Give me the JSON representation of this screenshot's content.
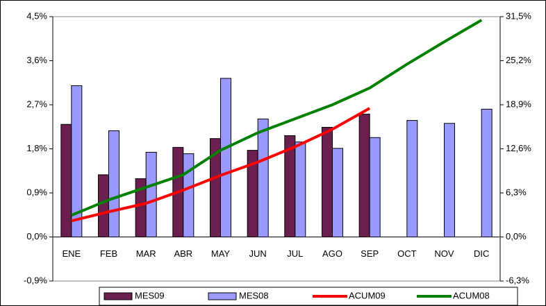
{
  "chart_data": {
    "type": "bar-line",
    "categories": [
      "ENE",
      "FEB",
      "MAR",
      "ABR",
      "MAY",
      "JUN",
      "JUL",
      "AGO",
      "SEP",
      "OCT",
      "NOV",
      "DIC"
    ],
    "series": [
      {
        "name": "MES09",
        "type": "bar",
        "color": "#6b1f4f",
        "values": [
          2.3,
          1.27,
          1.19,
          1.83,
          2.01,
          1.77,
          2.07,
          2.24,
          2.51,
          null,
          null,
          null
        ]
      },
      {
        "name": "MES08",
        "type": "bar",
        "color": "#9999ff",
        "values": [
          3.09,
          2.17,
          1.73,
          1.7,
          3.24,
          2.41,
          1.94,
          1.81,
          2.03,
          2.38,
          2.32,
          2.61
        ]
      },
      {
        "name": "ACUM09",
        "type": "line",
        "axis": "y2",
        "color": "#ff0000",
        "values": [
          2.3,
          3.6,
          4.8,
          6.7,
          8.8,
          10.7,
          12.9,
          15.4,
          18.4,
          null,
          null,
          null
        ]
      },
      {
        "name": "ACUM08",
        "type": "line",
        "axis": "y2",
        "color": "#008000",
        "values": [
          3.1,
          5.3,
          7.1,
          8.9,
          12.4,
          14.9,
          16.9,
          18.9,
          21.3,
          24.7,
          27.9,
          31.0
        ]
      }
    ],
    "ylim": [
      -0.9,
      4.5
    ],
    "yticks": [
      {
        "value": -0.9,
        "label": "-0,9%"
      },
      {
        "value": 0,
        "label": "0,0%"
      },
      {
        "value": 0.9,
        "label": "0,9%"
      },
      {
        "value": 1.8,
        "label": "1,8%"
      },
      {
        "value": 2.7,
        "label": "2,7%"
      },
      {
        "value": 3.6,
        "label": "3,6%"
      },
      {
        "value": 4.5,
        "label": "4,5%"
      }
    ],
    "y2lim": [
      -6.3,
      31.5
    ],
    "y2ticks": [
      {
        "value": -6.3,
        "label": "-6,3%"
      },
      {
        "value": 0,
        "label": "0,0%"
      },
      {
        "value": 6.3,
        "label": "6,3%"
      },
      {
        "value": 12.6,
        "label": "12,6%"
      },
      {
        "value": 18.9,
        "label": "18,9%"
      },
      {
        "value": 25.2,
        "label": "25,2%"
      },
      {
        "value": 31.5,
        "label": "31,5%"
      }
    ],
    "legend": "bottom"
  }
}
